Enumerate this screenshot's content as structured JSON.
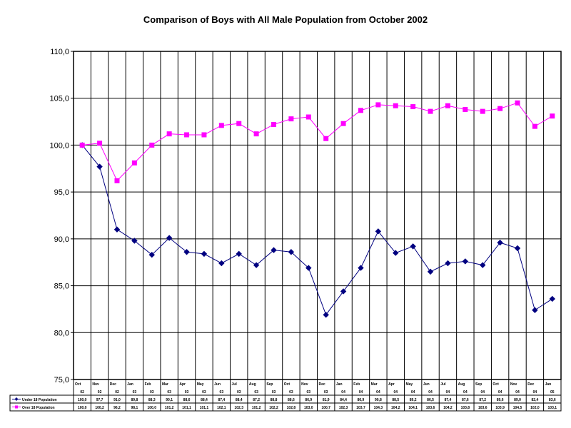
{
  "chart_data": {
    "type": "line",
    "title": "Comparison of Boys with All Male Population from October 2002",
    "xlabel": "",
    "ylabel": "",
    "ylim": [
      75.0,
      110.0
    ],
    "y_ticks": [
      "75,0",
      "80,0",
      "85,0",
      "90,0",
      "95,0",
      "100,0",
      "105,0",
      "110,0"
    ],
    "grid": true,
    "legend": "data-table-below",
    "categories": [
      {
        "month": "Oct",
        "year": "02"
      },
      {
        "month": "Nov",
        "year": "02"
      },
      {
        "month": "Dec",
        "year": "02"
      },
      {
        "month": "Jan",
        "year": "03"
      },
      {
        "month": "Feb",
        "year": "03"
      },
      {
        "month": "Mar",
        "year": "03"
      },
      {
        "month": "Apr",
        "year": "03"
      },
      {
        "month": "May",
        "year": "03"
      },
      {
        "month": "Jun",
        "year": "03"
      },
      {
        "month": "Jul",
        "year": "03"
      },
      {
        "month": "Aug",
        "year": "03"
      },
      {
        "month": "Sep",
        "year": "03"
      },
      {
        "month": "Oct",
        "year": "03"
      },
      {
        "month": "Nov",
        "year": "03"
      },
      {
        "month": "Dec",
        "year": "03"
      },
      {
        "month": "Jan",
        "year": "04"
      },
      {
        "month": "Feb",
        "year": "04"
      },
      {
        "month": "Mar",
        "year": "04"
      },
      {
        "month": "Apr",
        "year": "04"
      },
      {
        "month": "May",
        "year": "04"
      },
      {
        "month": "Jun",
        "year": "04"
      },
      {
        "month": "Jul",
        "year": "04"
      },
      {
        "month": "Aug",
        "year": "04"
      },
      {
        "month": "Sep",
        "year": "04"
      },
      {
        "month": "Oct",
        "year": "04"
      },
      {
        "month": "Nov",
        "year": "04"
      },
      {
        "month": "Dec",
        "year": "04"
      },
      {
        "month": "Jan",
        "year": "05"
      }
    ],
    "series": [
      {
        "name": "Under 18 Population",
        "color": "#000080",
        "marker": "diamond",
        "values": [
          100.0,
          97.7,
          91.0,
          89.8,
          88.3,
          90.1,
          88.6,
          88.4,
          87.4,
          88.4,
          87.2,
          88.8,
          88.6,
          86.9,
          81.9,
          84.4,
          86.9,
          90.8,
          88.5,
          89.2,
          86.5,
          87.4,
          87.6,
          87.2,
          89.6,
          89.0,
          82.4,
          83.6
        ],
        "labels": [
          "100,0",
          "97,7",
          "91,0",
          "89,8",
          "88,3",
          "90,1",
          "88,6",
          "88,4",
          "87,4",
          "88,4",
          "87,2",
          "88,8",
          "88,6",
          "86,9",
          "81,9",
          "84,4",
          "86,9",
          "90,8",
          "88,5",
          "89,2",
          "86,5",
          "87,4",
          "87,6",
          "87,2",
          "89,6",
          "89,0",
          "82,4",
          "83,6"
        ]
      },
      {
        "name": "Over 18 Population",
        "color": "#ff00ff",
        "marker": "square",
        "values": [
          100.0,
          100.2,
          96.2,
          98.1,
          100.0,
          101.2,
          101.1,
          101.1,
          102.1,
          102.3,
          101.2,
          102.2,
          102.8,
          103.0,
          100.7,
          102.3,
          103.7,
          104.3,
          104.2,
          104.1,
          103.6,
          104.2,
          103.8,
          103.6,
          103.9,
          104.5,
          102.0,
          103.1
        ],
        "labels": [
          "100,0",
          "100,2",
          "96,2",
          "98,1",
          "100,0",
          "101,2",
          "101,1",
          "101,1",
          "102,1",
          "102,3",
          "101,2",
          "102,2",
          "102,8",
          "103,0",
          "100,7",
          "102,3",
          "103,7",
          "104,3",
          "104,2",
          "104,1",
          "103,6",
          "104,2",
          "103,8",
          "103,6",
          "103,9",
          "104,5",
          "102,0",
          "103,1"
        ]
      }
    ]
  }
}
